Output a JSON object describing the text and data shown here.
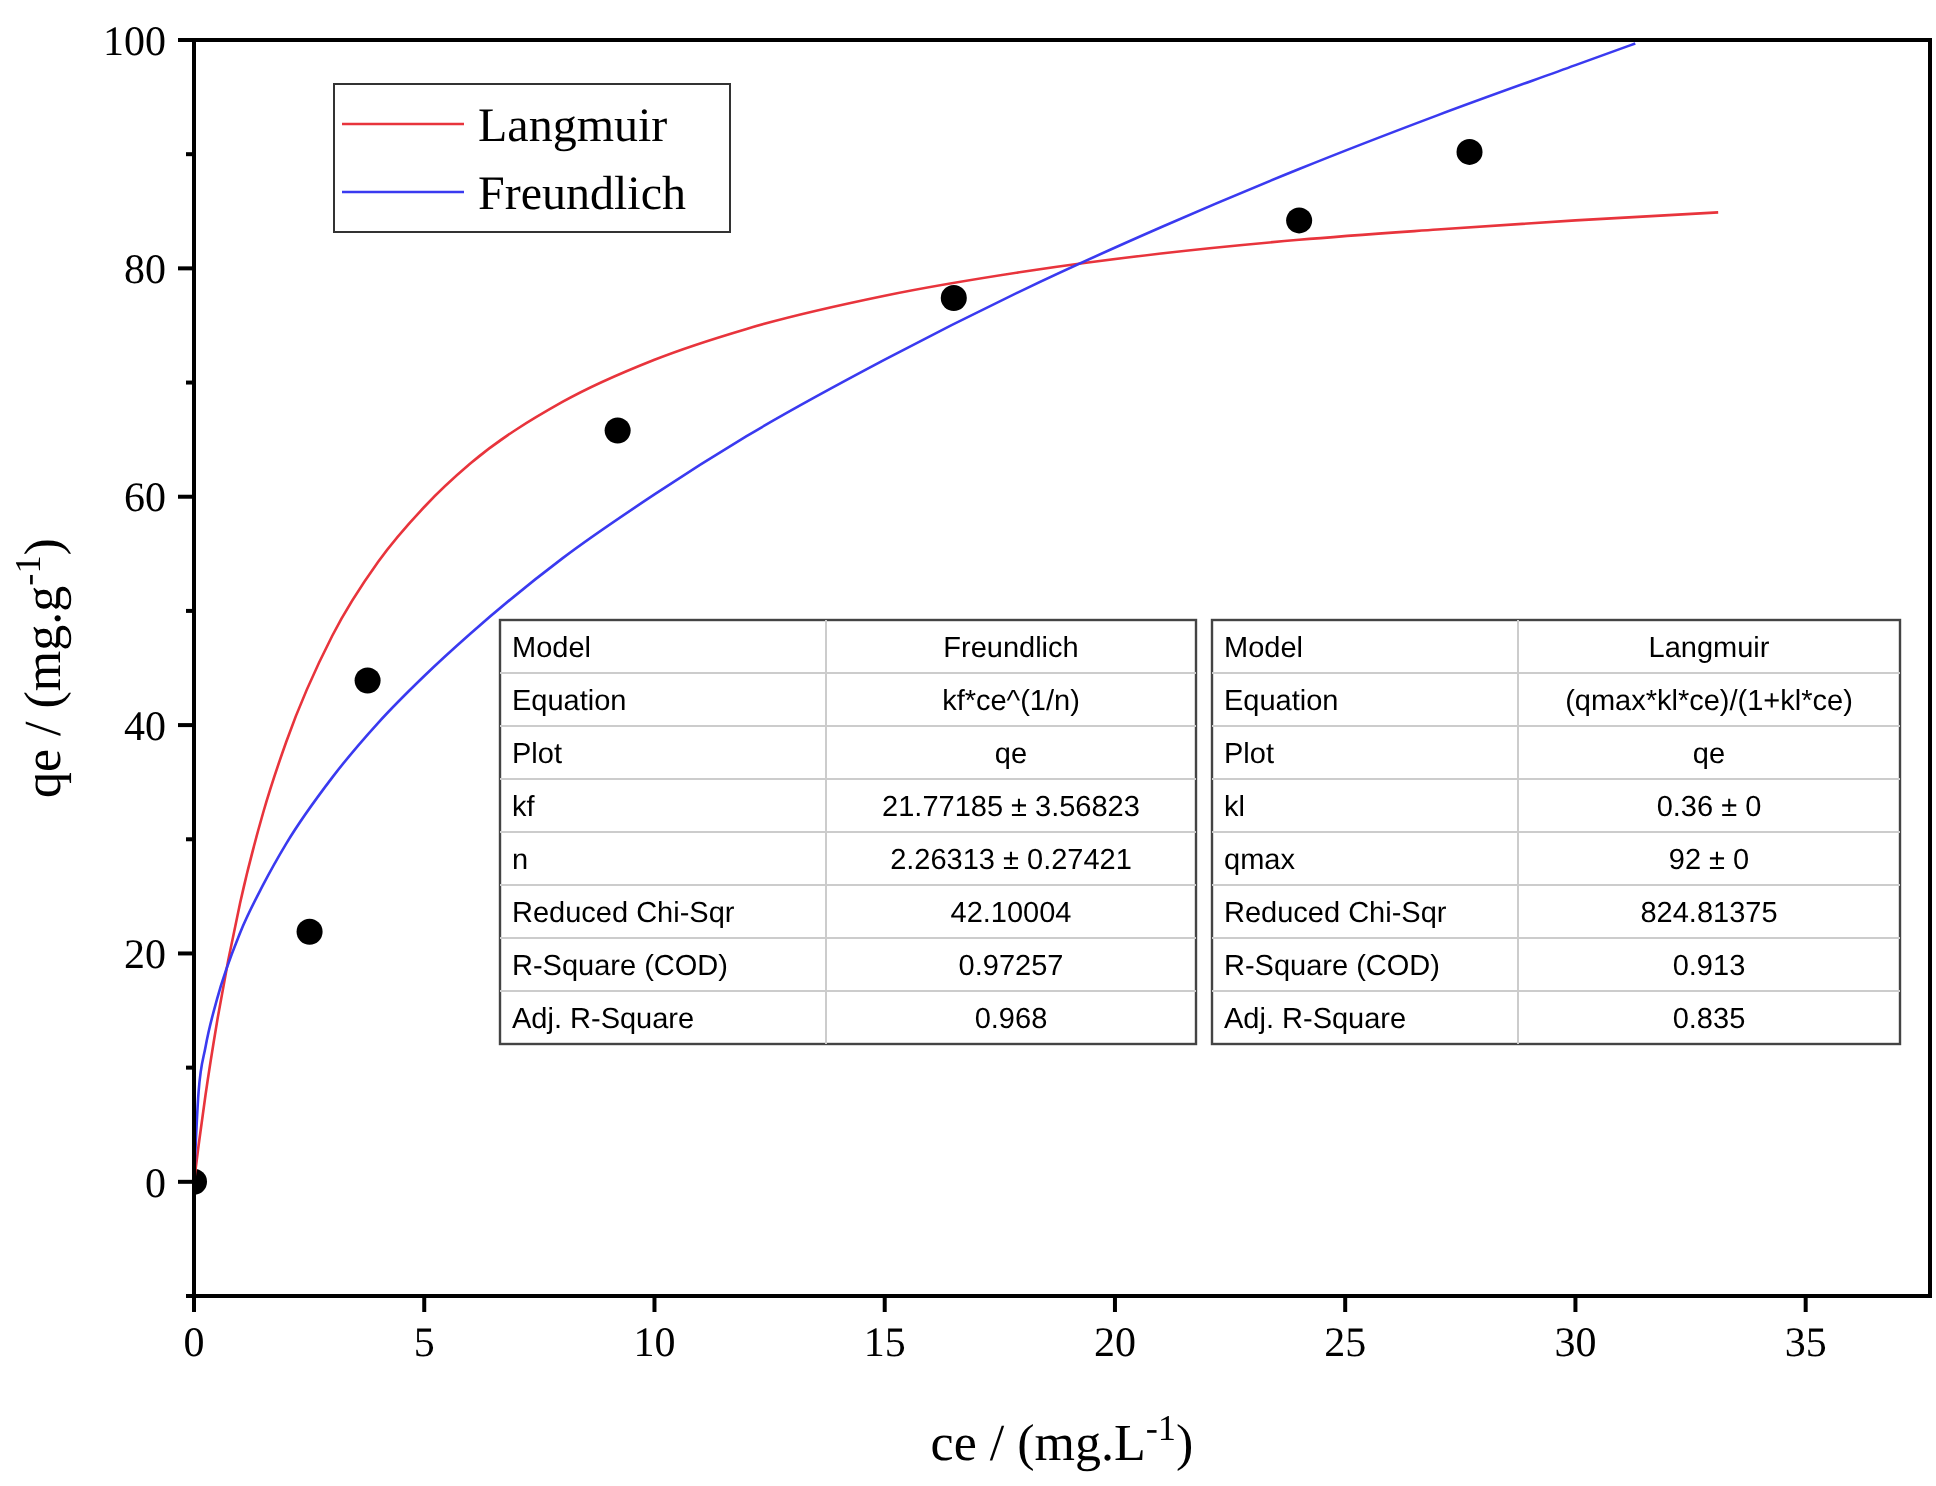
{
  "chart_data": {
    "type": "scatter",
    "xlabel": "ce / (mg.L$^{-1}$)",
    "ylabel": "qe / (mg.g$^{-1}$)",
    "xlim": [
      0,
      37.7
    ],
    "xticks": [
      0,
      5,
      10,
      15,
      20,
      25,
      30,
      35
    ],
    "ylim": [
      -10,
      100
    ],
    "yticks": [
      {
        "value": -10,
        "label": null
      },
      0,
      {
        "value": 10,
        "label": null
      },
      20,
      {
        "value": 30,
        "label": null
      },
      40,
      {
        "value": 50,
        "label": null
      },
      60,
      {
        "value": 70,
        "label": null
      },
      80,
      {
        "value": 90,
        "label": null
      },
      100
    ],
    "legend": "top left",
    "series": [
      {
        "marker": "circle",
        "color": "#000000",
        "x": [
          0,
          2.51,
          3.77,
          9.2,
          16.5,
          24.0,
          27.7
        ],
        "values": [
          0,
          21.9,
          43.9,
          65.8,
          77.4,
          84.2,
          90.2
        ]
      },
      {
        "type": "line",
        "name": "Langmuir",
        "color": "#e8343c",
        "x": [
          0,
          0.1,
          0.25,
          0.5,
          1,
          1.5,
          2,
          3,
          4,
          5,
          6,
          8,
          10,
          12,
          15,
          18,
          21,
          24,
          27,
          30,
          33.1
        ],
        "values": [
          0,
          3.2,
          7.6,
          14.0,
          24.4,
          32.3,
          38.5,
          47.8,
          54.3,
          59.1,
          62.9,
          68.3,
          72.0,
          74.7,
          77.6,
          79.7,
          81.3,
          82.5,
          83.4,
          84.2,
          84.9
        ]
      },
      {
        "type": "line",
        "name": "Freundlich",
        "color": "#3a3af0",
        "x": [
          0,
          0.1,
          0.25,
          0.5,
          1,
          1.5,
          2,
          3,
          4,
          5,
          6,
          8,
          10,
          12,
          15,
          18,
          21,
          24,
          27,
          30,
          31.3
        ],
        "values": [
          0,
          7.9,
          11.8,
          16.0,
          21.8,
          26.0,
          29.6,
          35.4,
          40.2,
          44.3,
          48.0,
          54.6,
          60.2,
          65.3,
          72.0,
          78.1,
          83.6,
          88.7,
          93.4,
          97.8,
          99.7
        ]
      }
    ],
    "annotations": [
      "Model",
      "Freundlich",
      "Equation",
      "kf*ce^(1/n)",
      "Plot",
      "qe",
      "kf",
      "21.77185 ± 3.56823",
      "n",
      "2.26313 ± 0.27421",
      "Reduced Chi-Sqr",
      "42.10004",
      "R-Square (COD)",
      "0.97257",
      "Adj. R-Square",
      "0.968",
      "Model",
      "Langmuir",
      "Equation",
      "(qmax*kl*ce)/(1+kl*ce)",
      "Plot",
      "qe",
      "kl",
      "0.36 ± 0",
      "qmax",
      "92 ± 0",
      "Reduced Chi-Sqr",
      "824.81375",
      "R-Square (COD)",
      "0.913",
      "Adj. R-Square",
      "0.835"
    ]
  }
}
